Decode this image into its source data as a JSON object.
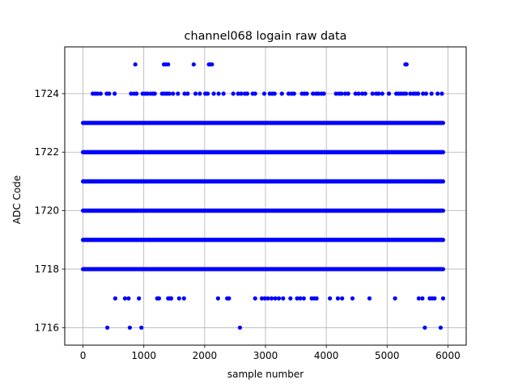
{
  "chart_data": {
    "type": "scatter",
    "title": "channel068 logain raw data",
    "xlabel": "sample number",
    "ylabel": "ADC Code",
    "xlim": [
      -300,
      6300
    ],
    "ylim": [
      1715.4,
      1725.6
    ],
    "x_ticks": [
      0,
      1000,
      2000,
      3000,
      4000,
      5000,
      6000
    ],
    "y_ticks": [
      1716,
      1718,
      1720,
      1722,
      1724
    ],
    "grid": true,
    "marker_color": "#0000ff",
    "series": [
      {
        "x_range": [
          0,
          5920
        ],
        "level_points": [
          {
            "y": 1725,
            "x": [
              860,
              1330,
              1360,
              1400,
              1820,
              2070,
              2090,
              2120,
              5300,
              5320
            ]
          },
          {
            "y": 1724,
            "x": [
              160,
              200,
              240,
              290,
              390,
              430,
              520,
              790,
              840,
              880,
              980,
              1020,
              1060,
              1110,
              1150,
              1180,
              1300,
              1340,
              1380,
              1420,
              1480,
              1560,
              1670,
              1720,
              1850,
              1920,
              2010,
              2050,
              2150,
              2230,
              2310,
              2470,
              2550,
              2600,
              2660,
              2700,
              2790,
              2830,
              2980,
              3070,
              3110,
              3150,
              3270,
              3380,
              3430,
              3470,
              3600,
              3640,
              3680,
              3780,
              3830,
              3870,
              3920,
              3960,
              4160,
              4210,
              4250,
              4310,
              4360,
              4480,
              4530,
              4590,
              4640,
              4760,
              4820,
              4860,
              4920,
              5030,
              5150,
              5190,
              5230,
              5270,
              5310,
              5380,
              5430,
              5470,
              5510,
              5590,
              5640,
              5730,
              5830,
              5900
            ]
          },
          {
            "y": 1716,
            "x": [
              400,
              770,
              960,
              2580,
              5620,
              5880
            ]
          },
          {
            "y": 1717,
            "x": [
              530,
              690,
              750,
              920,
              1220,
              1250,
              1400,
              1430,
              1450,
              1580,
              1660,
              2220,
              2370,
              2400,
              2830,
              2940,
              2990,
              3040,
              3100,
              3160,
              3220,
              3290,
              3410,
              3520,
              3570,
              3630,
              3760,
              3800,
              3840,
              4060,
              4190,
              4260,
              4430,
              4710,
              5130,
              5520,
              5580,
              5700,
              5740,
              5780,
              5920
            ]
          }
        ],
        "dense_levels": [
          1718,
          1719,
          1720,
          1721,
          1722,
          1723
        ]
      }
    ]
  }
}
